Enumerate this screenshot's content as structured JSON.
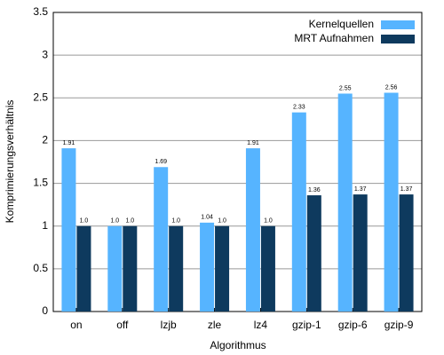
{
  "chart_data": {
    "type": "bar",
    "x_label": "Algorithmus",
    "y_label": "Komprimierungsverhältnis",
    "categories": [
      "on",
      "off",
      "lzjb",
      "zle",
      "lz4",
      "gzip-1",
      "gzip-6",
      "gzip-9"
    ],
    "series": [
      {
        "name": "Kernelquellen",
        "color": "#56b4ff",
        "values": [
          1.91,
          1.0,
          1.69,
          1.04,
          1.91,
          2.33,
          2.55,
          2.56
        ],
        "value_labels": [
          "1.91",
          "1.0",
          "1.69",
          "1.04",
          "1.91",
          "2.33",
          "2.55",
          "2.56"
        ]
      },
      {
        "name": "MRT Aufnahmen",
        "color": "#0e3a5e",
        "values": [
          1.0,
          1.0,
          1.0,
          1.0,
          1.0,
          1.36,
          1.37,
          1.37
        ],
        "value_labels": [
          "1.0",
          "1.0",
          "1.0",
          "1.0",
          "1.0",
          "1.36",
          "1.37",
          "1.37"
        ]
      }
    ],
    "ylim": [
      0,
      3.5
    ],
    "yticks": [
      0,
      0.5,
      1,
      1.5,
      2,
      2.5,
      3,
      3.5
    ],
    "grid": true,
    "legend": "top-right"
  }
}
